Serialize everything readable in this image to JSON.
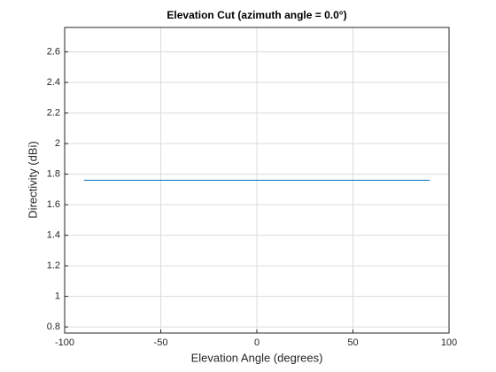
{
  "chart_data": {
    "type": "line",
    "title": "Elevation Cut (azimuth angle = 0.0°)",
    "xlabel": "Elevation Angle (degrees)",
    "ylabel": "Directivity (dBi)",
    "x": [
      -90,
      90
    ],
    "series": [
      {
        "color": "#0072bd",
        "values": [
          1.76,
          1.76
        ]
      }
    ],
    "xlim": [
      -100,
      100
    ],
    "xticks": [
      -100,
      -50,
      0,
      50,
      100
    ],
    "ylim": [
      0.76,
      2.76
    ],
    "yticks": [
      0.8,
      1,
      1.2,
      1.4,
      1.6,
      1.8,
      2,
      2.2,
      2.4,
      2.6
    ],
    "grid": true
  }
}
